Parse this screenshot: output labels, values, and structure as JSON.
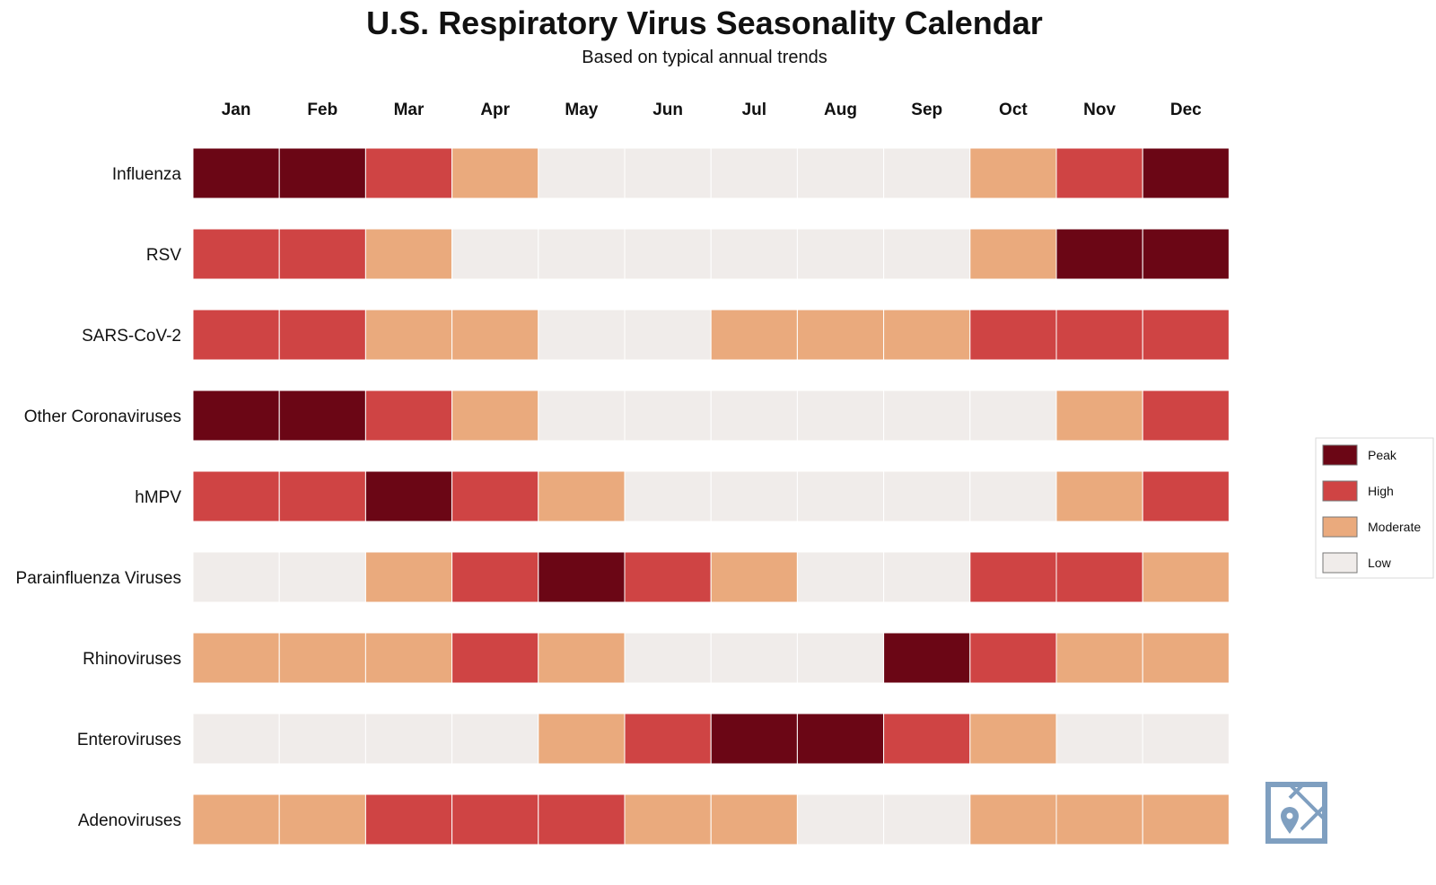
{
  "chart_data": {
    "type": "heatmap",
    "title": "U.S. Respiratory Virus Seasonality Calendar",
    "subtitle": "Based on typical annual trends",
    "columns": [
      "Jan",
      "Feb",
      "Mar",
      "Apr",
      "May",
      "Jun",
      "Jul",
      "Aug",
      "Sep",
      "Oct",
      "Nov",
      "Dec"
    ],
    "rows": [
      "Influenza",
      "RSV",
      "SARS-CoV-2",
      "Other Coronaviruses",
      "hMPV",
      "Parainfluenza Viruses",
      "Rhinoviruses",
      "Enteroviruses",
      "Adenoviruses"
    ],
    "level_scale": {
      "0": "Low",
      "1": "Moderate",
      "2": "High",
      "3": "Peak"
    },
    "values": [
      [
        3,
        3,
        2,
        1,
        0,
        0,
        0,
        0,
        0,
        1,
        2,
        3
      ],
      [
        2,
        2,
        1,
        0,
        0,
        0,
        0,
        0,
        0,
        1,
        3,
        3
      ],
      [
        2,
        2,
        1,
        1,
        0,
        0,
        1,
        1,
        1,
        2,
        2,
        2
      ],
      [
        3,
        3,
        2,
        1,
        0,
        0,
        0,
        0,
        0,
        0,
        1,
        2
      ],
      [
        2,
        2,
        3,
        2,
        1,
        0,
        0,
        0,
        0,
        0,
        1,
        2
      ],
      [
        0,
        0,
        1,
        2,
        3,
        2,
        1,
        0,
        0,
        2,
        2,
        1
      ],
      [
        1,
        1,
        1,
        2,
        1,
        0,
        0,
        0,
        3,
        2,
        1,
        1
      ],
      [
        0,
        0,
        0,
        0,
        1,
        2,
        3,
        3,
        2,
        1,
        0,
        0
      ],
      [
        1,
        1,
        2,
        2,
        2,
        1,
        1,
        0,
        0,
        1,
        1,
        1
      ]
    ],
    "legend": [
      {
        "label": "Peak",
        "level": 3,
        "color": "#6b0615"
      },
      {
        "label": "High",
        "level": 2,
        "color": "#cf4444"
      },
      {
        "label": "Moderate",
        "level": 1,
        "color": "#eaaa7d"
      },
      {
        "label": "Low",
        "level": 0,
        "color": "#f0ecea"
      }
    ],
    "legend_placement": "right"
  },
  "colors": {
    "level_0": "#f0ecea",
    "level_1": "#eaaa7d",
    "level_2": "#cf4444",
    "level_3": "#6b0615",
    "map_icon": "#7f9fc0"
  },
  "icons": {
    "corner": "map-pin-icon"
  }
}
